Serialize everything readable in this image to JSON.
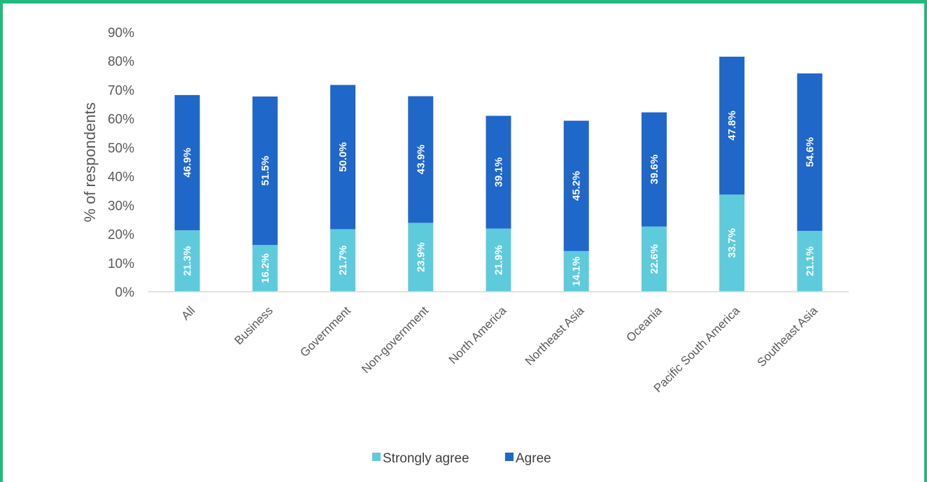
{
  "chart_data": {
    "type": "bar",
    "stacked": true,
    "ylabel": "% of respondents",
    "ylim": [
      0,
      90
    ],
    "yticks": [
      "0%",
      "10%",
      "20%",
      "30%",
      "40%",
      "50%",
      "60%",
      "70%",
      "80%",
      "90%"
    ],
    "grid": false,
    "legend_position": "bottom",
    "categories": [
      "All",
      "Business",
      "Government",
      "Non-government",
      "North America",
      "Northeast Asia",
      "Oceania",
      "Pacific South America",
      "Southeast Asia"
    ],
    "series": [
      {
        "name": "Strongly agree",
        "color": "#5ecbdc",
        "values": [
          21.3,
          16.2,
          21.7,
          23.9,
          21.9,
          14.1,
          22.6,
          33.7,
          21.1
        ],
        "labels": [
          "21.3%",
          "16.2%",
          "21.7%",
          "23.9%",
          "21.9%",
          "14.1%",
          "22.6%",
          "33.7%",
          "21.1%"
        ]
      },
      {
        "name": "Agree",
        "color": "#1f67c9",
        "values": [
          46.9,
          51.5,
          50.0,
          43.9,
          39.1,
          45.2,
          39.6,
          47.8,
          54.6
        ],
        "labels": [
          "46.9%",
          "51.5%",
          "50.0%",
          "43.9%",
          "39.1%",
          "45.2%",
          "39.6%",
          "47.8%",
          "54.6%"
        ]
      }
    ]
  }
}
